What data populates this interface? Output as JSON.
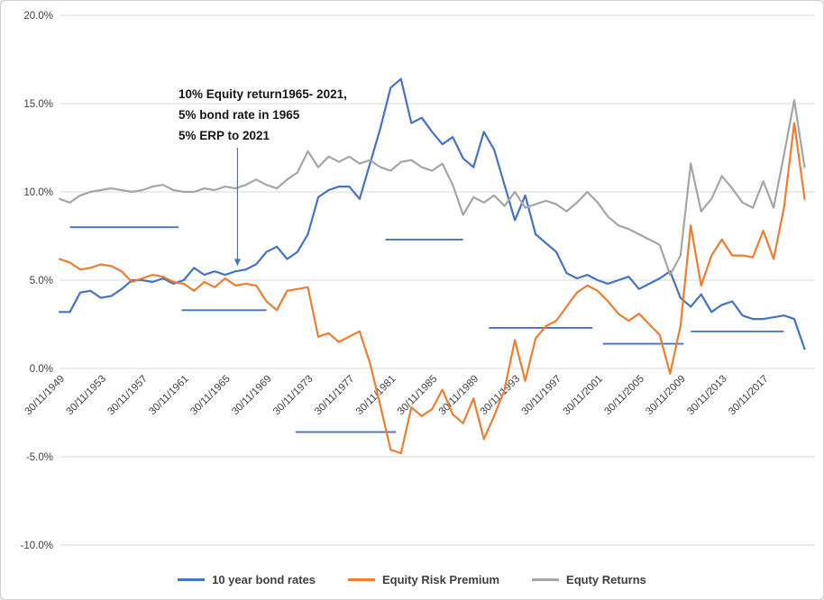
{
  "chart_data": {
    "type": "line",
    "title": "",
    "xlabel": "",
    "ylabel": "",
    "xlim": [
      1949,
      2022
    ],
    "ylim": [
      -10,
      20
    ],
    "grid": "horizontal",
    "gridline_color": "#d9d9d9",
    "legend_position": "bottom",
    "x_years": [
      1949,
      1950,
      1951,
      1952,
      1953,
      1954,
      1955,
      1956,
      1957,
      1958,
      1959,
      1960,
      1961,
      1962,
      1963,
      1964,
      1965,
      1966,
      1967,
      1968,
      1969,
      1970,
      1971,
      1972,
      1973,
      1974,
      1975,
      1976,
      1977,
      1978,
      1979,
      1980,
      1981,
      1982,
      1983,
      1984,
      1985,
      1986,
      1987,
      1988,
      1989,
      1990,
      1991,
      1992,
      1993,
      1994,
      1995,
      1996,
      1997,
      1998,
      1999,
      2000,
      2001,
      2002,
      2003,
      2004,
      2005,
      2006,
      2007,
      2008,
      2009,
      2010,
      2011,
      2012,
      2013,
      2014,
      2015,
      2016,
      2017,
      2018,
      2019,
      2020,
      2021
    ],
    "series": [
      {
        "name": "10 year bond rates",
        "color": "#4472C4",
        "values": [
          3.2,
          3.2,
          4.3,
          4.4,
          4.0,
          4.1,
          4.5,
          5.0,
          5.0,
          4.9,
          5.1,
          4.8,
          5.0,
          5.7,
          5.3,
          5.5,
          5.3,
          5.5,
          5.6,
          5.9,
          6.6,
          6.9,
          6.2,
          6.6,
          7.6,
          9.7,
          10.1,
          10.3,
          10.3,
          9.6,
          11.6,
          13.6,
          15.9,
          16.4,
          13.9,
          14.2,
          13.4,
          12.7,
          13.1,
          11.9,
          11.4,
          13.4,
          12.4,
          10.4,
          8.4,
          9.8,
          7.6,
          7.1,
          6.6,
          5.4,
          5.1,
          5.3,
          5.0,
          4.8,
          5.0,
          5.2,
          4.5,
          4.8,
          5.1,
          5.5,
          4.0,
          3.5,
          4.2,
          3.2,
          3.6,
          3.8,
          3.0,
          2.8,
          2.8,
          2.9,
          3.0,
          2.8,
          1.1
        ]
      },
      {
        "name": "Equity Risk Premium",
        "color": "#ED7D31",
        "values": [
          6.2,
          6.0,
          5.6,
          5.7,
          5.9,
          5.8,
          5.5,
          4.9,
          5.1,
          5.3,
          5.2,
          4.9,
          4.8,
          4.4,
          4.9,
          4.6,
          5.1,
          4.7,
          4.8,
          4.7,
          3.8,
          3.3,
          4.4,
          4.5,
          4.6,
          1.8,
          2.0,
          1.5,
          1.8,
          2.1,
          0.3,
          -2.1,
          -4.6,
          -4.8,
          -2.2,
          -2.7,
          -2.3,
          -1.2,
          -2.6,
          -3.1,
          -1.7,
          -4.0,
          -2.7,
          -1.2,
          1.6,
          -0.7,
          1.7,
          2.4,
          2.7,
          3.5,
          4.3,
          4.7,
          4.4,
          3.8,
          3.1,
          2.7,
          3.1,
          2.5,
          1.9,
          -0.3,
          2.4,
          8.1,
          4.7,
          6.4,
          7.3,
          6.4,
          6.4,
          6.3,
          7.8,
          6.2,
          9.1,
          13.9,
          9.6
        ]
      },
      {
        "name": "Equty Returns",
        "color": "#A5A5A5",
        "values": [
          9.6,
          9.4,
          9.8,
          10.0,
          10.1,
          10.2,
          10.1,
          10.0,
          10.1,
          10.3,
          10.4,
          10.1,
          10.0,
          10.0,
          10.2,
          10.1,
          10.3,
          10.2,
          10.4,
          10.7,
          10.4,
          10.2,
          10.7,
          11.1,
          12.3,
          11.4,
          12.0,
          11.7,
          12.0,
          11.6,
          11.8,
          11.4,
          11.2,
          11.7,
          11.8,
          11.4,
          11.2,
          11.6,
          10.4,
          8.7,
          9.7,
          9.4,
          9.8,
          9.2,
          10.0,
          9.1,
          9.3,
          9.5,
          9.3,
          8.9,
          9.4,
          10.0,
          9.4,
          8.6,
          8.1,
          7.9,
          7.6,
          7.3,
          7.0,
          5.3,
          6.4,
          11.6,
          8.9,
          9.6,
          10.9,
          10.2,
          9.4,
          9.1,
          10.6,
          9.1,
          12.1,
          15.2,
          11.4
        ]
      }
    ],
    "y_ticks": [
      {
        "value": 20,
        "label": "20.0%"
      },
      {
        "value": 15,
        "label": "15.0%"
      },
      {
        "value": 10,
        "label": "10.0%"
      },
      {
        "value": 5,
        "label": "5.0%"
      },
      {
        "value": 0,
        "label": "0.0%"
      },
      {
        "value": -5,
        "label": "-5.0%"
      },
      {
        "value": -10,
        "label": "-10.0%"
      }
    ],
    "x_ticks": [
      {
        "year": 1949,
        "label": "30/11/1949"
      },
      {
        "year": 1953,
        "label": "30/11/1953"
      },
      {
        "year": 1957,
        "label": "30/11/1957"
      },
      {
        "year": 1961,
        "label": "30/11/1961"
      },
      {
        "year": 1965,
        "label": "30/11/1965"
      },
      {
        "year": 1969,
        "label": "30/11/1969"
      },
      {
        "year": 1973,
        "label": "30/11/1973"
      },
      {
        "year": 1977,
        "label": "30/11/1977"
      },
      {
        "year": 1981,
        "label": "30/11/1981"
      },
      {
        "year": 1985,
        "label": "30/11/1985"
      },
      {
        "year": 1989,
        "label": "30/11/1989"
      },
      {
        "year": 1993,
        "label": "30/11/1993"
      },
      {
        "year": 1997,
        "label": "30/11/1997"
      },
      {
        "year": 2001,
        "label": "30/11/2001"
      },
      {
        "year": 2005,
        "label": "30/11/2005"
      },
      {
        "year": 2009,
        "label": "30/11/2009"
      },
      {
        "year": 2013,
        "label": "30/11/2013"
      },
      {
        "year": 2017,
        "label": "30/11/2017"
      }
    ],
    "average_line_color": "#4472C4",
    "average_lines": [
      {
        "from_year": 1950.0,
        "to_year": 1960.5,
        "value": 8.0
      },
      {
        "from_year": 1960.8,
        "to_year": 1969.0,
        "value": 3.3
      },
      {
        "from_year": 1971.8,
        "to_year": 1981.5,
        "value": -3.6
      },
      {
        "from_year": 1980.5,
        "to_year": 1988.0,
        "value": 7.3
      },
      {
        "from_year": 1990.5,
        "to_year": 2000.5,
        "value": 2.3
      },
      {
        "from_year": 2001.5,
        "to_year": 2009.3,
        "value": 1.4
      },
      {
        "from_year": 2010.0,
        "to_year": 2019.0,
        "value": 2.1
      }
    ],
    "annotation": {
      "lines": [
        "10% Equity return1965-  2021,",
        "5% bond rate in 1965",
        "5% ERP to 2021"
      ],
      "arrow": {
        "x_year": 1966.2,
        "value_from": 12.5,
        "value_to": 5.8
      },
      "arrow_color": "#4472C4"
    }
  }
}
